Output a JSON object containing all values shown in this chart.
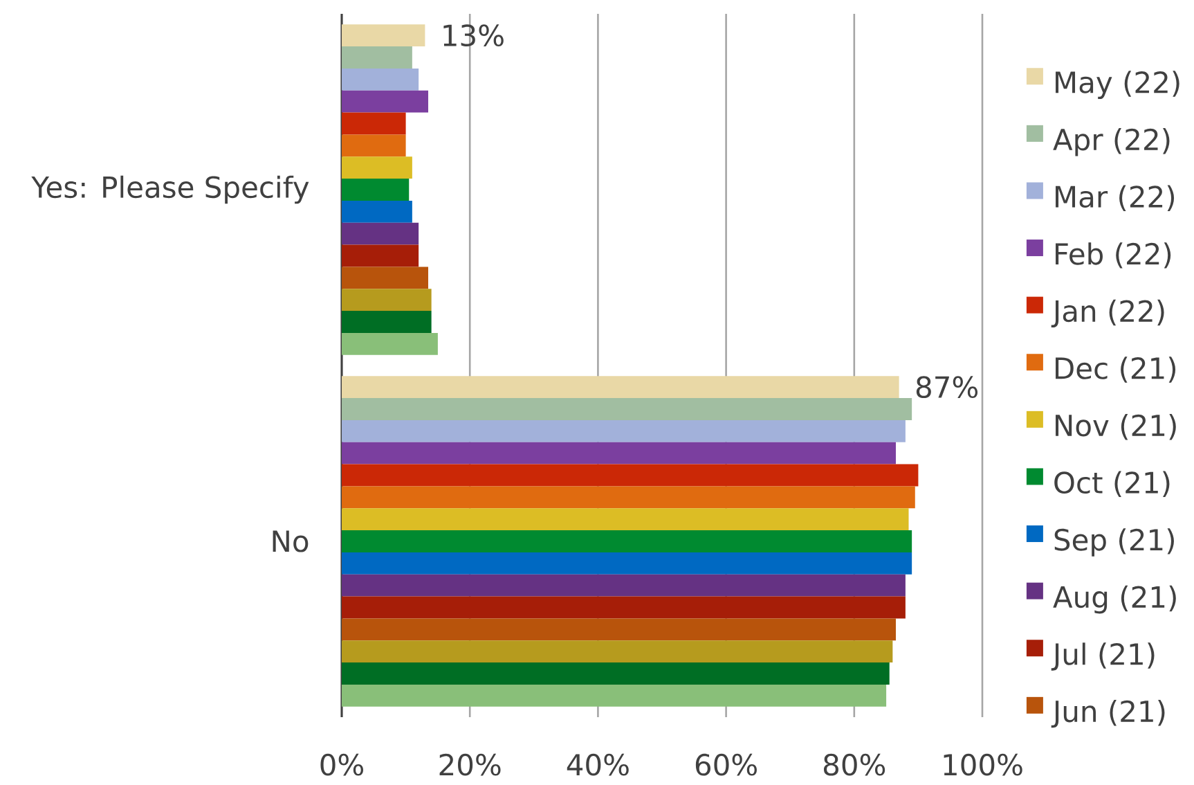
{
  "chart_data": {
    "type": "bar",
    "orientation": "horizontal",
    "categories": [
      "Yes: Please Specify",
      "No"
    ],
    "series": [
      {
        "name": "May (22)",
        "color": "#e9d8a6",
        "values": [
          13,
          87
        ],
        "value_labels": [
          "13%",
          "87%"
        ]
      },
      {
        "name": "Apr (22)",
        "color": "#a1bea1",
        "values": [
          11,
          89
        ]
      },
      {
        "name": "Mar (22)",
        "color": "#a2b1da",
        "values": [
          12,
          88
        ]
      },
      {
        "name": "Feb (22)",
        "color": "#7b3f9f",
        "values": [
          13.5,
          86.5
        ]
      },
      {
        "name": "Jan (22)",
        "color": "#cb2806",
        "values": [
          10,
          90
        ]
      },
      {
        "name": "Dec (21)",
        "color": "#e06b10",
        "values": [
          10,
          89.5
        ]
      },
      {
        "name": "Nov (21)",
        "color": "#dcbd25",
        "values": [
          11,
          88.5
        ]
      },
      {
        "name": "Oct (21)",
        "color": "#008a30",
        "values": [
          10.5,
          89
        ]
      },
      {
        "name": "Sep (21)",
        "color": "#0069c2",
        "values": [
          11,
          89
        ]
      },
      {
        "name": "Aug (21)",
        "color": "#653283",
        "values": [
          12,
          88
        ]
      },
      {
        "name": "Jul (21)",
        "color": "#a61e08",
        "values": [
          12,
          88
        ]
      },
      {
        "name": "Jun (21)",
        "color": "#b8540c",
        "values": [
          13.5,
          86.5
        ]
      },
      {
        "color": "#b69b1e",
        "values": [
          14,
          86
        ]
      },
      {
        "color": "#006e24",
        "values": [
          14,
          85.5
        ]
      },
      {
        "color": "#89bf79",
        "values": [
          15,
          85
        ]
      }
    ],
    "xlim": [
      0,
      100
    ],
    "xticks": [
      {
        "value": 0,
        "label": "0%"
      },
      {
        "value": 20,
        "label": "20%"
      },
      {
        "value": 40,
        "label": "40%"
      },
      {
        "value": 60,
        "label": "60%"
      },
      {
        "value": 80,
        "label": "80%"
      },
      {
        "value": 100,
        "label": "100%"
      }
    ],
    "grid": "x",
    "legend": "right"
  }
}
